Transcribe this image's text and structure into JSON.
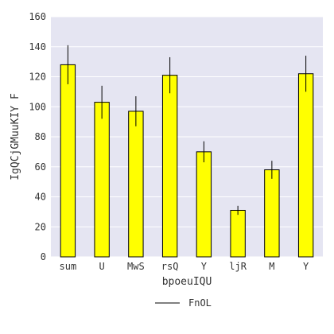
{
  "chart_data": {
    "type": "bar",
    "categories": [
      "sum",
      "U",
      "MwS",
      "rsQ",
      "Y",
      "ljR",
      "M",
      "Y"
    ],
    "values": [
      128,
      103,
      97,
      121,
      70,
      31,
      58,
      122
    ],
    "errors": [
      13,
      11,
      10,
      12,
      7,
      3,
      6,
      12
    ],
    "xlabel": "bpoeuIQU",
    "ylabel": "IgQCjGMuuKIY F",
    "ylim": [
      0,
      160
    ],
    "yticks": [
      0,
      20,
      40,
      60,
      80,
      100,
      120,
      140,
      160
    ],
    "legend": {
      "label": "FnOL",
      "position": "bottom-center"
    },
    "grid": true,
    "colors": {
      "plot_background": "#e5e5f2",
      "grid": "#ffffff",
      "bar_fill": "#ffff00",
      "bar_edge": "#000000",
      "errorbar": "#000000",
      "text": "#333333"
    }
  }
}
